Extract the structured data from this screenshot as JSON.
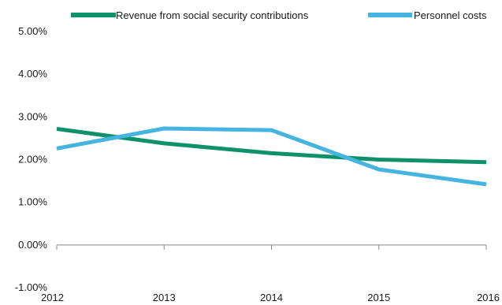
{
  "chart_data": {
    "type": "line",
    "x": [
      "2012",
      "2013",
      "2014",
      "2015",
      "2016"
    ],
    "ylim": [
      -1.0,
      5.0
    ],
    "yticks": [
      5.0,
      4.0,
      3.0,
      2.0,
      1.0,
      0.0,
      -1.0
    ],
    "ytick_labels": [
      "5.00%",
      "4.00%",
      "3.00%",
      "2.00%",
      "1.00%",
      "0.00%",
      "-1.00%"
    ],
    "legend_position": "top",
    "grid": false,
    "series": [
      {
        "name": "Revenue from social security contributions",
        "color": "#0e9168",
        "values": [
          2.72,
          2.38,
          2.15,
          2.0,
          1.94
        ]
      },
      {
        "name": "Personnel costs",
        "color": "#45b4e0",
        "values": [
          2.26,
          2.73,
          2.69,
          1.77,
          1.42
        ]
      }
    ]
  }
}
